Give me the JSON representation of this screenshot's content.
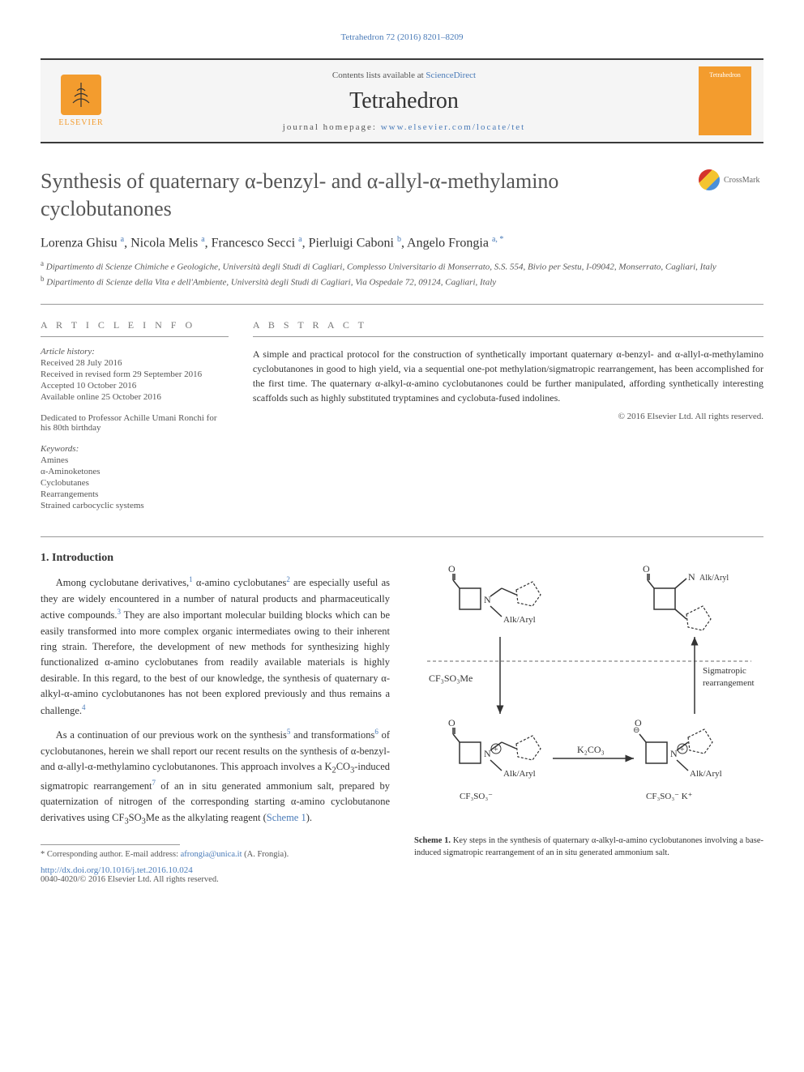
{
  "top_reference": "Tetrahedron 72 (2016) 8201–8209",
  "header": {
    "contents_prefix": "Contents lists available at ",
    "contents_link": "ScienceDirect",
    "journal_name": "Tetrahedron",
    "homepage_prefix": "journal homepage: ",
    "homepage_link": "www.elsevier.com/locate/tet",
    "elsevier_label": "ELSEVIER",
    "cover_text": "Tetrahedron"
  },
  "crossmark_label": "CrossMark",
  "title": "Synthesis of quaternary α-benzyl- and α-allyl-α-methylamino cyclobutanones",
  "authors_html": "Lorenza Ghisu <sup>a</sup>, Nicola Melis <sup>a</sup>, Francesco Secci <sup>a</sup>, Pierluigi Caboni <sup>b</sup>, Angelo Frongia <sup>a, *</sup>",
  "affiliations": [
    {
      "sup": "a",
      "text": "Dipartimento di Scienze Chimiche e Geologiche, Università degli Studi di Cagliari, Complesso Universitario di Monserrato, S.S. 554, Bivio per Sestu, I-09042, Monserrato, Cagliari, Italy"
    },
    {
      "sup": "b",
      "text": "Dipartimento di Scienze della Vita e dell'Ambiente, Università degli Studi di Cagliari, Via Ospedale 72, 09124, Cagliari, Italy"
    }
  ],
  "article_info": {
    "heading": "A R T I C L E  I N F O",
    "history_label": "Article history:",
    "history": [
      "Received 28 July 2016",
      "Received in revised form 29 September 2016",
      "Accepted 10 October 2016",
      "Available online 25 October 2016"
    ],
    "dedication": "Dedicated to Professor Achille Umani Ronchi for his 80th birthday",
    "keywords_label": "Keywords:",
    "keywords": [
      "Amines",
      "α-Aminoketones",
      "Cyclobutanes",
      "Rearrangements",
      "Strained carbocyclic systems"
    ]
  },
  "abstract": {
    "heading": "A B S T R A C T",
    "text": "A simple and practical protocol for the construction of synthetically important quaternary α-benzyl- and α-allyl-α-methylamino cyclobutanones in good to high yield, via a sequential one-pot methylation/sigmatropic rearrangement, has been accomplished for the first time. The quaternary α-alkyl-α-amino cyclobutanones could be further manipulated, affording synthetically interesting scaffolds such as highly substituted tryptamines and cyclobuta-fused indolines.",
    "copyright": "© 2016 Elsevier Ltd. All rights reserved."
  },
  "introduction": {
    "heading": "1. Introduction",
    "para1_html": "Among cyclobutane derivatives,<sup>1</sup> α-amino cyclobutanes<sup>2</sup> are especially useful as they are widely encountered in a number of natural products and pharmaceutically active compounds.<sup>3</sup> They are also important molecular building blocks which can be easily transformed into more complex organic intermediates owing to their inherent ring strain. Therefore, the development of new methods for synthesizing highly functionalized α-amino cyclobutanes from readily available materials is highly desirable. In this regard, to the best of our knowledge, the synthesis of quaternary α-alkyl-α-amino cyclobutanones has not been explored previously and thus remains a challenge.<sup>4</sup>",
    "para2_html": "As a continuation of our previous work on the synthesis<sup>5</sup> and transformations<sup>6</sup> of cyclobutanones, herein we shall report our recent results on the synthesis of α-benzyl- and α-allyl-α-methylamino cyclobutanones. This approach involves a K<sub>2</sub>CO<sub>3</sub>-induced sigmatropic rearrangement<sup>7</sup> of an in situ generated ammonium salt, prepared by quaternization of nitrogen of the corresponding starting α-amino cyclobutanone derivatives using CF<sub>3</sub>SO<sub>3</sub>Me as the alkylating reagent (<a>Scheme 1</a>)."
  },
  "footnote": {
    "marker": "*",
    "text": "Corresponding author. E-mail address: ",
    "email": "afrongia@unica.it",
    "author_paren": " (A. Frongia)."
  },
  "doi": "http://dx.doi.org/10.1016/j.tet.2016.10.024",
  "bottom_copyright": "0040-4020/© 2016 Elsevier Ltd. All rights reserved.",
  "scheme": {
    "caption_bold": "Scheme 1.",
    "caption_text": " Key steps in the synthesis of quaternary α-alkyl-α-amino cyclobutanones involving a base-induced sigmatropic rearrangement of an in situ generated ammonium salt.",
    "labels": {
      "alk_aryl": "Alk/Aryl",
      "reagent1": "CF₃SO₃Me",
      "reagent2": "K₂CO₃",
      "counterion": "CF₃SO₃⁻",
      "counterion_k": "CF₃SO₃⁻ K⁺",
      "sigmatropic": "Sigmatropic rearrangement"
    },
    "colors": {
      "stroke": "#333333",
      "dashed": "#666666",
      "background": "#ffffff"
    },
    "stroke_width": 1.5
  },
  "colors": {
    "link": "#4a7bb8",
    "text": "#333333",
    "muted": "#555555",
    "border": "#999999",
    "elsevier_orange": "#f39c2e",
    "background": "#ffffff",
    "header_bg": "#f5f5f5"
  },
  "typography": {
    "body_fontsize_pt": 12.5,
    "title_fontsize_pt": 26,
    "journal_name_fontsize_pt": 28,
    "abstract_fontsize_pt": 12,
    "info_fontsize_pt": 11,
    "caption_fontsize_pt": 10.5,
    "font_family": "Georgia, Times New Roman, serif"
  }
}
